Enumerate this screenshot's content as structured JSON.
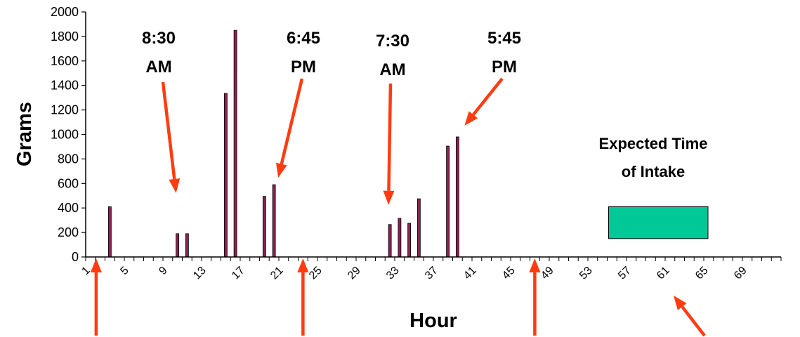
{
  "chart_data": {
    "type": "bar",
    "xlabel": "Hour",
    "ylabel": "Grams",
    "ylim": [
      0,
      2000
    ],
    "y_ticks": [
      0,
      200,
      400,
      600,
      800,
      1000,
      1200,
      1400,
      1600,
      1800,
      2000
    ],
    "x_categories_count": 72,
    "x_tick_labels": [
      "1",
      "5",
      "9",
      "13",
      "17",
      "21",
      "25",
      "29",
      "33",
      "37",
      "41",
      "45",
      "49",
      "53",
      "57",
      "61",
      "65",
      "69"
    ],
    "grid": false,
    "legend": "none",
    "bar_color": "#8B2252",
    "bars": [
      {
        "x": 3,
        "value": 410
      },
      {
        "x": 10,
        "value": 190
      },
      {
        "x": 11,
        "value": 190
      },
      {
        "x": 15,
        "value": 1335
      },
      {
        "x": 16,
        "value": 1850
      },
      {
        "x": 19,
        "value": 495
      },
      {
        "x": 20,
        "value": 590
      },
      {
        "x": 32,
        "value": 265
      },
      {
        "x": 33,
        "value": 315
      },
      {
        "x": 34,
        "value": 275
      },
      {
        "x": 35,
        "value": 475
      },
      {
        "x": 38,
        "value": 905
      },
      {
        "x": 39,
        "value": 980
      }
    ],
    "annotations": [
      {
        "line1": "8:30",
        "line2": "AM",
        "target_x": 10,
        "target_value": 190
      },
      {
        "line1": "6:45",
        "line2": "PM",
        "target_x": 20,
        "target_value": 590
      },
      {
        "line1": "7:30",
        "line2": "AM",
        "target_x": 32,
        "target_value": 265
      },
      {
        "line1": "5:45",
        "line2": "PM",
        "target_x": 39,
        "target_value": 980
      }
    ],
    "expected_intake": {
      "line1": "Expected Time",
      "line2": "of Intake",
      "x_start": 55,
      "x_end": 64,
      "y_low": 150,
      "y_high": 410,
      "color": "#00C896"
    },
    "bottom_arrows_x": [
      1,
      23,
      47,
      62
    ],
    "arrow_color": "#FF3B0F"
  }
}
